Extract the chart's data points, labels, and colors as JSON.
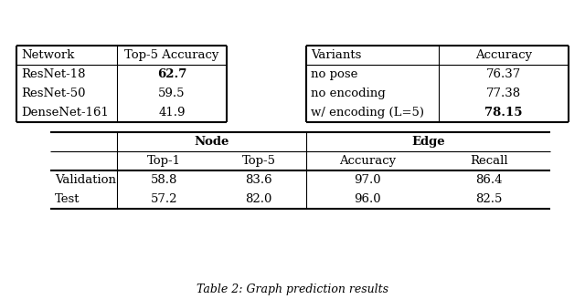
{
  "bg_color": "#ffffff",
  "table1_header": [
    "Network",
    "Top-5 Accuracy"
  ],
  "table1_rows": [
    [
      "ResNet-18",
      "62.7"
    ],
    [
      "ResNet-50",
      "59.5"
    ],
    [
      "DenseNet-161",
      "41.9"
    ]
  ],
  "table1_bold_row": 0,
  "table2_header": [
    "Variants",
    "Accuracy"
  ],
  "table2_rows": [
    [
      "no pose",
      "76.37"
    ],
    [
      "no encoding",
      "77.38"
    ],
    [
      "w/ encoding (L=5)",
      "78.15"
    ]
  ],
  "table2_bold_row": 2,
  "table3_group_headers": [
    "Node",
    "Edge"
  ],
  "table3_subheaders": [
    "Top-1",
    "Top-5",
    "Accuracy",
    "Recall"
  ],
  "table3_rows": [
    [
      "Validation",
      "58.8",
      "83.6",
      "97.0",
      "86.4"
    ],
    [
      "Test",
      "57.2",
      "82.0",
      "96.0",
      "82.5"
    ]
  ],
  "font_size": 9.5,
  "caption": "Table 2: Graph prediction results",
  "fig_w": 6.4,
  "fig_h": 3.28,
  "dpi": 100
}
